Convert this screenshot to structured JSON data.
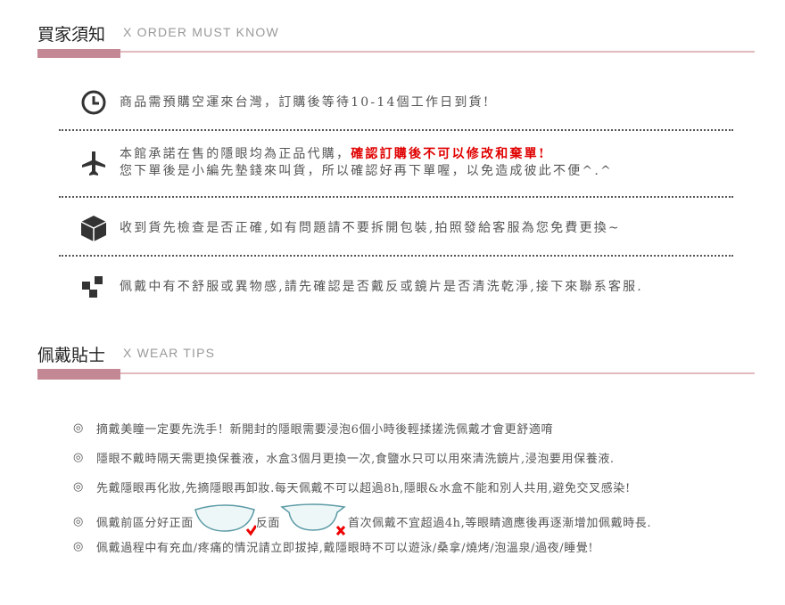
{
  "order": {
    "title": "買家須知",
    "subtitle": "X  ORDER MUST KNOW",
    "items": [
      {
        "icon": "clock-icon",
        "lines": [
          "商品需預購空運來台灣，訂購後等待10-14個工作日到貨!"
        ]
      },
      {
        "icon": "airplane-icon",
        "line1": "本館承諾在售的隱眼均為正品代購，",
        "line1_red": "確認訂購後不可以修改和棄單!",
        "line2": "您下單後是小編先墊錢來叫貨，所以確認好再下單喔，以免造成彼此不便^.^"
      },
      {
        "icon": "box-icon",
        "lines": [
          "收到貨先檢查是否正確,如有問題請不要拆開包裝,拍照發給客服為您免費更換~"
        ]
      },
      {
        "icon": "cubes-icon",
        "lines": [
          "佩戴中有不舒服或異物感,請先確認是否戴反或鏡片是否清洗乾淨,接下來聯系客服."
        ]
      }
    ]
  },
  "wear": {
    "title": "佩戴貼士",
    "subtitle": "X  WEAR TIPS",
    "bullet": "◎",
    "tips": [
      "摘戴美瞳一定要先洗手！新開封的隱眼需要浸泡6個小時後輕揉搓洗佩戴才會更舒適唷",
      "隱眼不戴時隔天需更換保養液，水盒3個月更換一次,食鹽水只可以用來清洗鏡片,浸泡要用保養液.",
      "先戴隱眼再化妝,先摘隱眼再卸妝.每天佩戴不可以超過8h,隱眼&水盒不能和別人共用,避免交叉感染!",
      {
        "a": "佩戴前區分好正面",
        "b": "反面",
        "c": "首次佩戴不宜超過4h,等眼睛適應後再逐漸增加佩戴時長."
      },
      "佩戴過程中有充血/疼痛的情況請立即拔掉,戴隱眼時不可以遊泳/桑拿/燒烤/泡溫泉/過夜/睡覺!"
    ]
  },
  "colors": {
    "accent": "#c48894",
    "line": "#e2b9be",
    "warning": "#e00000"
  }
}
